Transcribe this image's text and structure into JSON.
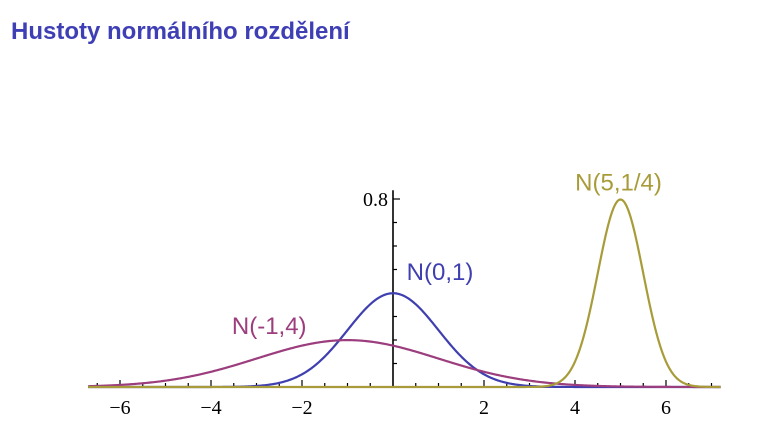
{
  "page": {
    "title": "Hustoty normálního rozdělení"
  },
  "chart_data": {
    "type": "line",
    "title": "",
    "xlabel": "",
    "ylabel": "",
    "xlim": [
      -6.7,
      7.2
    ],
    "ylim": [
      0,
      0.82
    ],
    "grid": false,
    "x_ticks": [
      {
        "value": -6,
        "label": "−6"
      },
      {
        "value": -4,
        "label": "−4"
      },
      {
        "value": -2,
        "label": "−2"
      },
      {
        "value": 2,
        "label": "2"
      },
      {
        "value": 4,
        "label": "4"
      },
      {
        "value": 6,
        "label": "6"
      }
    ],
    "y_ticks": [
      {
        "value": 0.8,
        "label": "0.8"
      }
    ],
    "series": [
      {
        "name": "N(0,1)",
        "mean": 0,
        "variance": 1,
        "color": "#3f3fb0"
      },
      {
        "name": "N(-1,4)",
        "mean": -1,
        "variance": 4,
        "color": "#9c3d7e"
      },
      {
        "name": "N(5,1/4)",
        "mean": 5,
        "variance": 0.25,
        "color": "#a89c3a"
      }
    ]
  }
}
